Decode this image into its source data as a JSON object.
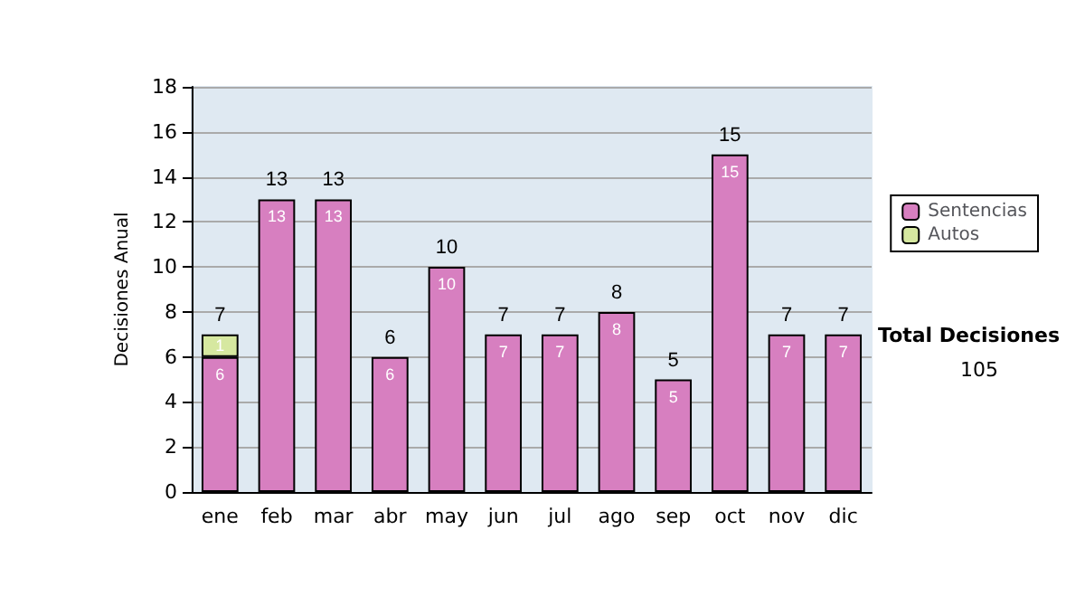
{
  "chart_data": {
    "type": "bar",
    "stacked": true,
    "ylabel": "Decisiones Anual",
    "categories": [
      "ene",
      "feb",
      "mar",
      "abr",
      "may",
      "jun",
      "jul",
      "ago",
      "sep",
      "oct",
      "nov",
      "dic"
    ],
    "series": [
      {
        "name": "Sentencias",
        "color": "#d77fc0",
        "values": [
          6,
          13,
          13,
          6,
          10,
          7,
          7,
          8,
          5,
          15,
          7,
          7
        ],
        "value_labels": [
          "6",
          "13",
          "13",
          "6",
          "10",
          "7",
          "7",
          "8",
          "5",
          "15",
          "7",
          "7"
        ]
      },
      {
        "name": "Autos",
        "color": "#d6e8a0",
        "values": [
          1,
          null,
          null,
          null,
          null,
          null,
          null,
          null,
          null,
          null,
          null,
          null
        ],
        "value_labels": [
          "1",
          null,
          null,
          null,
          null,
          null,
          null,
          null,
          null,
          null,
          null,
          null
        ]
      }
    ],
    "totals": [
      "7",
      "13",
      "13",
      "6",
      "10",
      "7",
      "7",
      "8",
      "5",
      "15",
      "7",
      "7"
    ],
    "ylim": [
      0,
      18
    ],
    "yticks": [
      0,
      2,
      4,
      6,
      8,
      10,
      12,
      14,
      16,
      18
    ],
    "grid": "y",
    "legend": "right",
    "annotations": [
      "Total Decisiones",
      "105"
    ]
  }
}
